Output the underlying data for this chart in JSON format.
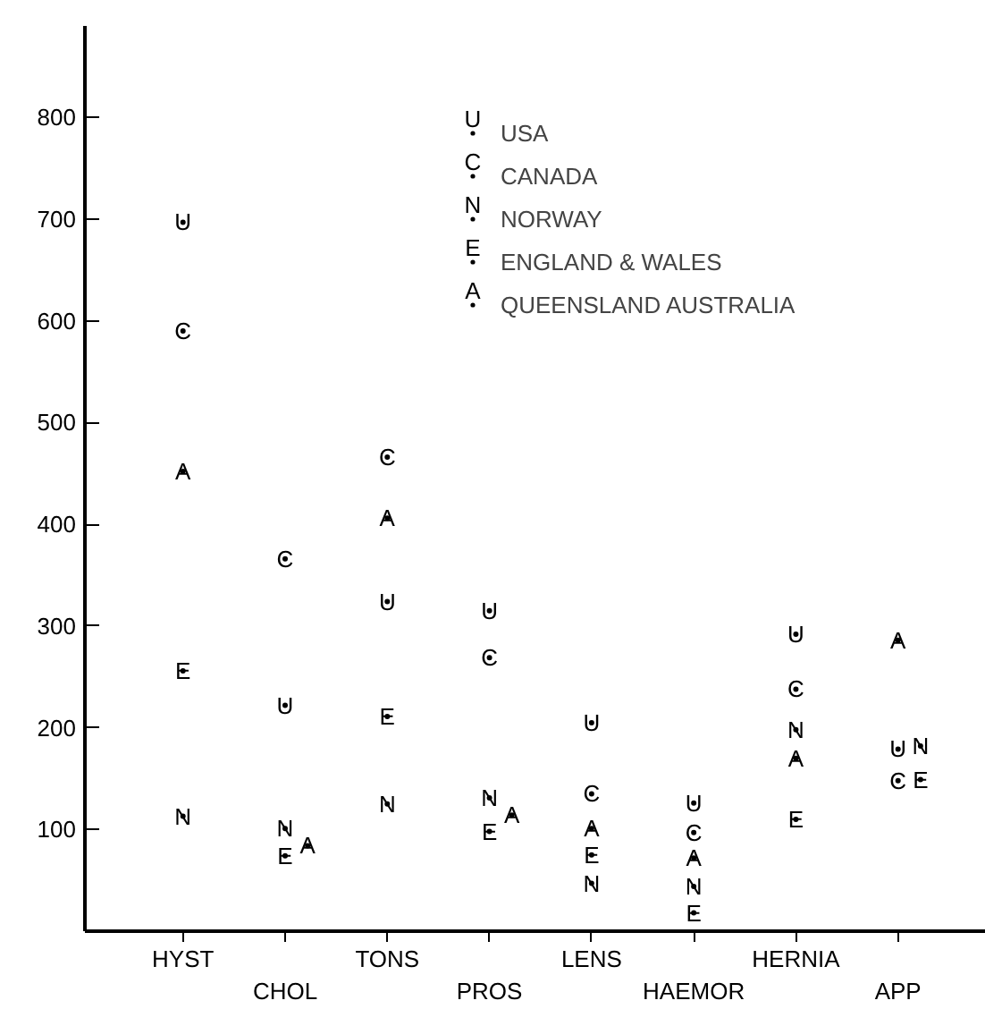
{
  "chart_data": {
    "type": "scatter",
    "categories": [
      "HYST",
      "CHOL",
      "TONS",
      "PROS",
      "LENS",
      "HAEMOR",
      "HERNIA",
      "APP"
    ],
    "series": [
      {
        "name": "USA",
        "color": "#000000",
        "values": [
          697,
          222,
          324,
          315,
          205,
          126,
          292,
          179
        ],
        "value_labels": [
          "U",
          "U",
          "U",
          "U",
          "U",
          "U",
          "U",
          "U"
        ]
      },
      {
        "name": "CANADA",
        "color": "#000000",
        "values": [
          590,
          366,
          466,
          269,
          135,
          97,
          238,
          148
        ],
        "value_labels": [
          "C",
          "C",
          "C",
          "C",
          "C",
          "C",
          "C",
          "C"
        ]
      },
      {
        "name": "NORWAY",
        "color": "#000000",
        "values": [
          113,
          101,
          125,
          131,
          47,
          44,
          198,
          182
        ],
        "value_labels": [
          "N",
          "N",
          "N",
          "N",
          "N",
          "N",
          "N",
          "N"
        ]
      },
      {
        "name": "ENGLAND & WALES",
        "color": "#000000",
        "values": [
          256,
          74,
          211,
          98,
          75,
          18,
          110,
          149
        ],
        "value_labels": [
          "E",
          "E",
          "E",
          "E",
          "E",
          "E",
          "E",
          "E"
        ]
      },
      {
        "name": "QUEENSLAND AUSTRALIA",
        "color": "#000000",
        "values": [
          452,
          84,
          406,
          114,
          101,
          72,
          170,
          286
        ],
        "value_labels": [
          "A",
          "A",
          "A",
          "A",
          "A",
          "A",
          "A",
          "A"
        ]
      }
    ],
    "ylim": [
      0,
      890
    ],
    "yticks": [
      100,
      200,
      300,
      400,
      500,
      600,
      700,
      800
    ],
    "marker": "circle",
    "grid": false,
    "legend": "top right"
  }
}
